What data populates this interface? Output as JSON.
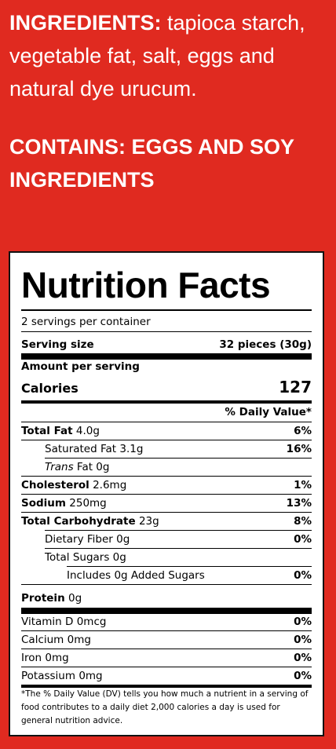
{
  "ingredients": {
    "label": "INGREDIENTS:",
    "text": " tapioca starch, vegetable fat, salt, eggs and natural dye urucum."
  },
  "contains": "CONTAINS: EGGS AND SOY INGREDIENTS",
  "nutrition": {
    "title": "Nutrition Facts",
    "servings": "2 servings per container",
    "serving_size_label": "Serving size",
    "serving_size_value": "32 pieces (30g)",
    "amount_per_serving": "Amount per serving",
    "calories_label": "Calories",
    "calories_value": "127",
    "dv_header": "% Daily Value*",
    "rows": [
      {
        "name": "Total Fat",
        "amount": "4.0g",
        "dv": "6%"
      },
      {
        "name": "Saturated Fat",
        "amount": "3.1g",
        "dv": "16%"
      },
      {
        "name": "Trans",
        "amount": "Fat 0g",
        "dv": ""
      },
      {
        "name": "Cholesterol",
        "amount": "2.6mg",
        "dv": "1%"
      },
      {
        "name": "Sodium",
        "amount": "250mg",
        "dv": "13%"
      },
      {
        "name": "Total Carbohydrate",
        "amount": "23g",
        "dv": "8%"
      },
      {
        "name": "Dietary Fiber",
        "amount": "0g",
        "dv": "0%"
      },
      {
        "name": "Total Sugars",
        "amount": "0g",
        "dv": ""
      },
      {
        "name": "Includes 0g Added Sugars",
        "amount": "",
        "dv": "0%"
      },
      {
        "name": "Protein",
        "amount": "0g",
        "dv": ""
      },
      {
        "name": "Vitamin D",
        "amount": "0mcg",
        "dv": "0%"
      },
      {
        "name": "Calcium",
        "amount": "0mg",
        "dv": "0%"
      },
      {
        "name": "Iron",
        "amount": "0mg",
        "dv": "0%"
      },
      {
        "name": "Potassium",
        "amount": "0mg",
        "dv": "0%"
      }
    ],
    "footnote": "*The % Daily Value (DV) tells you how much a nutrient in a serving of food contributes to a daily diet 2,000 calories a day is used for general nutrition advice."
  }
}
